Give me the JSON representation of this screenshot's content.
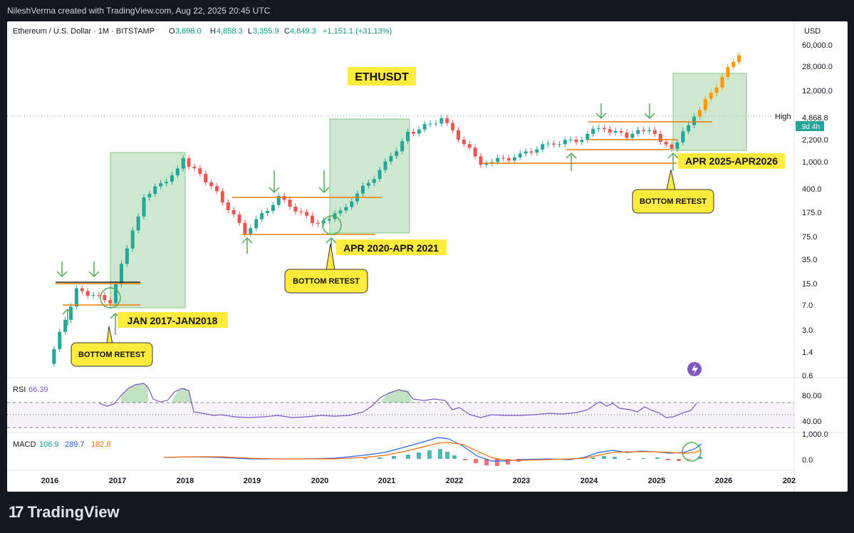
{
  "header": {
    "credit": "NileshVerma created with TradingView.com, Aug 22, 2025 20:45 UTC"
  },
  "legend": {
    "symbol": "Ethereum / U.S. Dollar · 1M · BITSTAMP",
    "o_label": "O",
    "o": "3,698.0",
    "h_label": "H",
    "h": "4,858.3",
    "l_label": "L",
    "l": "3,355.9",
    "c_label": "C",
    "c": "4,849.3",
    "change": "+1,151.1 (+31.13%)"
  },
  "currency": "USD",
  "price_labels": [
    "60,000.0",
    "28,000.0",
    "12,000.0",
    "4,868.8",
    "2,200.0",
    "1,000.0",
    "400.0",
    "175.0",
    "75.0",
    "35.0",
    "15.0",
    "7.0",
    "3.0",
    "1.4",
    "0.6"
  ],
  "high_marker": {
    "label": "High",
    "value": "4,868.8",
    "countdown": "9d 4h"
  },
  "x_labels": [
    "2016",
    "2017",
    "2018",
    "2019",
    "2020",
    "2021",
    "2022",
    "2023",
    "2024",
    "2025",
    "2026",
    "202"
  ],
  "annotations": {
    "title": "ETHUSDT",
    "cycle1": "JAN 2017-JAN2018",
    "cycle2": "APR 2020-APR 2021",
    "cycle3": "APR 2025-APR2026",
    "retest": "BOTTOM RETEST"
  },
  "rsi": {
    "label": "RSI",
    "value": "66.39",
    "levels": [
      "80.00",
      "40.00"
    ]
  },
  "macd": {
    "label": "MACD",
    "v1": "106.9",
    "v2": "289.7",
    "v3": "182.8",
    "levels": [
      "1,000.0",
      "0.0"
    ]
  },
  "colors": {
    "up": "#26a69a",
    "down": "#ef5350",
    "support": "#f57c00",
    "zone": "#a5d6a7",
    "annotation": "#ffeb3b",
    "arrow": "#4caf50",
    "rsi": "#7e57c2",
    "macd": "#2962ff",
    "signal": "#ff6d00",
    "projection": "#ff9800"
  },
  "chart_data": {
    "type": "candlestick",
    "title": "ETHUSDT",
    "x": [
      "2016-01",
      "2016-06",
      "2016-12",
      "2017-03",
      "2017-06",
      "2017-12",
      "2018-01",
      "2018-06",
      "2018-12",
      "2019-06",
      "2019-12",
      "2020-03",
      "2020-06",
      "2020-12",
      "2021-05",
      "2021-11",
      "2022-06",
      "2022-12",
      "2023-06",
      "2023-12",
      "2024-03",
      "2024-08",
      "2024-12",
      "2025-04",
      "2025-07",
      "2025-08",
      "2026-04"
    ],
    "series": [
      {
        "values": [
          0.9,
          12,
          8,
          50,
          300,
          750,
          1100,
          450,
          90,
          290,
          130,
          130,
          230,
          740,
          2700,
          4600,
          1000,
          1200,
          1900,
          2250,
          3500,
          2500,
          3300,
          1500,
          3700,
          4849,
          45000
        ]
      }
    ],
    "ylabel": "USD",
    "ylim": [
      0.6,
      60000
    ],
    "log_scale": true,
    "grid": true,
    "indicators": [
      "RSI",
      "MACD"
    ]
  }
}
